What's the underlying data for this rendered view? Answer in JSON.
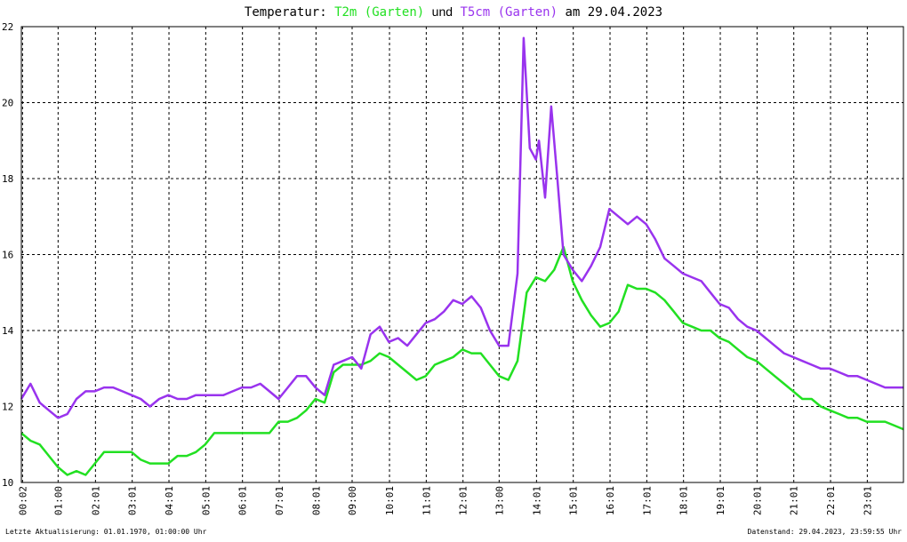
{
  "chart_data": {
    "type": "line",
    "title": "Temperatur:",
    "title_join": "und",
    "title_date": "am 29.04.2023",
    "footer_left": "Letzte Aktualisierung: 01.01.1970, 01:00:00 Uhr",
    "footer_right": "Datenstand: 29.04.2023, 23:59:55 Uhr",
    "xlim": [
      0,
      1440
    ],
    "ylim": [
      10,
      22
    ],
    "yticks": [
      10,
      12,
      14,
      16,
      18,
      20,
      22
    ],
    "xticks": [
      {
        "value": 2,
        "label": "00:02"
      },
      {
        "value": 60,
        "label": "01:00"
      },
      {
        "value": 121,
        "label": "02:01"
      },
      {
        "value": 181,
        "label": "03:01"
      },
      {
        "value": 241,
        "label": "04:01"
      },
      {
        "value": 301,
        "label": "05:01"
      },
      {
        "value": 361,
        "label": "06:01"
      },
      {
        "value": 421,
        "label": "07:01"
      },
      {
        "value": 481,
        "label": "08:01"
      },
      {
        "value": 540,
        "label": "09:00"
      },
      {
        "value": 601,
        "label": "10:01"
      },
      {
        "value": 661,
        "label": "11:01"
      },
      {
        "value": 721,
        "label": "12:01"
      },
      {
        "value": 780,
        "label": "13:00"
      },
      {
        "value": 841,
        "label": "14:01"
      },
      {
        "value": 901,
        "label": "15:01"
      },
      {
        "value": 961,
        "label": "16:01"
      },
      {
        "value": 1021,
        "label": "17:01"
      },
      {
        "value": 1081,
        "label": "18:01"
      },
      {
        "value": 1141,
        "label": "19:01"
      },
      {
        "value": 1201,
        "label": "20:01"
      },
      {
        "value": 1261,
        "label": "21:01"
      },
      {
        "value": 1321,
        "label": "22:01"
      },
      {
        "value": 1381,
        "label": "23:01"
      }
    ],
    "grid": true,
    "series": [
      {
        "name": "T2m (Garten)",
        "color": "#22e022",
        "x": [
          0,
          15,
          30,
          45,
          60,
          75,
          90,
          105,
          120,
          135,
          150,
          165,
          180,
          195,
          210,
          225,
          240,
          255,
          270,
          285,
          300,
          315,
          330,
          345,
          360,
          375,
          390,
          405,
          420,
          435,
          450,
          465,
          480,
          495,
          510,
          525,
          540,
          555,
          570,
          585,
          600,
          615,
          630,
          645,
          660,
          675,
          690,
          705,
          720,
          735,
          750,
          765,
          780,
          795,
          810,
          825,
          840,
          855,
          870,
          885,
          900,
          915,
          930,
          945,
          960,
          975,
          990,
          1005,
          1020,
          1035,
          1050,
          1065,
          1080,
          1095,
          1110,
          1125,
          1140,
          1155,
          1170,
          1185,
          1200,
          1215,
          1230,
          1245,
          1260,
          1275,
          1290,
          1305,
          1320,
          1335,
          1350,
          1365,
          1380,
          1395,
          1410,
          1425,
          1440
        ],
        "values": [
          11.3,
          11.1,
          11.0,
          10.7,
          10.4,
          10.2,
          10.3,
          10.2,
          10.5,
          10.8,
          10.8,
          10.8,
          10.8,
          10.6,
          10.5,
          10.5,
          10.5,
          10.7,
          10.7,
          10.8,
          11.0,
          11.3,
          11.3,
          11.3,
          11.3,
          11.3,
          11.3,
          11.3,
          11.6,
          11.6,
          11.7,
          11.9,
          12.2,
          12.1,
          12.9,
          13.1,
          13.1,
          13.1,
          13.2,
          13.4,
          13.3,
          13.1,
          12.9,
          12.7,
          12.8,
          13.1,
          13.2,
          13.3,
          13.5,
          13.4,
          13.4,
          13.1,
          12.8,
          12.7,
          13.2,
          15.0,
          15.4,
          15.3,
          15.6,
          16.2,
          15.3,
          14.8,
          14.4,
          14.1,
          14.2,
          14.5,
          15.2,
          15.1,
          15.1,
          15.0,
          14.8,
          14.5,
          14.2,
          14.1,
          14.0,
          14.0,
          13.8,
          13.7,
          13.5,
          13.3,
          13.2,
          13.0,
          12.8,
          12.6,
          12.4,
          12.2,
          12.2,
          12.0,
          11.9,
          11.8,
          11.7,
          11.7,
          11.6,
          11.6,
          11.6,
          11.5,
          11.4
        ]
      },
      {
        "name": "T5cm (Garten)",
        "color": "#9933ee",
        "x": [
          0,
          15,
          30,
          45,
          60,
          75,
          90,
          105,
          120,
          135,
          150,
          165,
          180,
          195,
          210,
          225,
          240,
          255,
          270,
          285,
          300,
          315,
          330,
          345,
          360,
          375,
          390,
          405,
          420,
          435,
          450,
          465,
          480,
          495,
          510,
          525,
          540,
          555,
          570,
          585,
          600,
          615,
          630,
          645,
          660,
          675,
          690,
          705,
          720,
          735,
          750,
          765,
          780,
          795,
          810,
          820,
          830,
          840,
          845,
          855,
          865,
          875,
          885,
          900,
          915,
          930,
          945,
          960,
          975,
          990,
          1005,
          1020,
          1035,
          1050,
          1065,
          1080,
          1095,
          1110,
          1125,
          1140,
          1155,
          1170,
          1185,
          1200,
          1215,
          1230,
          1245,
          1260,
          1275,
          1290,
          1305,
          1320,
          1335,
          1350,
          1365,
          1380,
          1395,
          1410,
          1425,
          1440
        ],
        "values": [
          12.2,
          12.6,
          12.1,
          11.9,
          11.7,
          11.8,
          12.2,
          12.4,
          12.4,
          12.5,
          12.5,
          12.4,
          12.3,
          12.2,
          12.0,
          12.2,
          12.3,
          12.2,
          12.2,
          12.3,
          12.3,
          12.3,
          12.3,
          12.4,
          12.5,
          12.5,
          12.6,
          12.4,
          12.2,
          12.5,
          12.8,
          12.8,
          12.5,
          12.3,
          13.1,
          13.2,
          13.3,
          13.0,
          13.9,
          14.1,
          13.7,
          13.8,
          13.6,
          13.9,
          14.2,
          14.3,
          14.5,
          14.8,
          14.7,
          14.9,
          14.6,
          14.0,
          13.6,
          13.6,
          15.5,
          21.7,
          18.8,
          18.5,
          19.0,
          17.5,
          19.9,
          18.0,
          16.0,
          15.6,
          15.3,
          15.7,
          16.2,
          17.2,
          17.0,
          16.8,
          17.0,
          16.8,
          16.4,
          15.9,
          15.7,
          15.5,
          15.4,
          15.3,
          15.0,
          14.7,
          14.6,
          14.3,
          14.1,
          14.0,
          13.8,
          13.6,
          13.4,
          13.3,
          13.2,
          13.1,
          13.0,
          13.0,
          12.9,
          12.8,
          12.8,
          12.7,
          12.6,
          12.5,
          12.5,
          12.5
        ]
      }
    ]
  }
}
